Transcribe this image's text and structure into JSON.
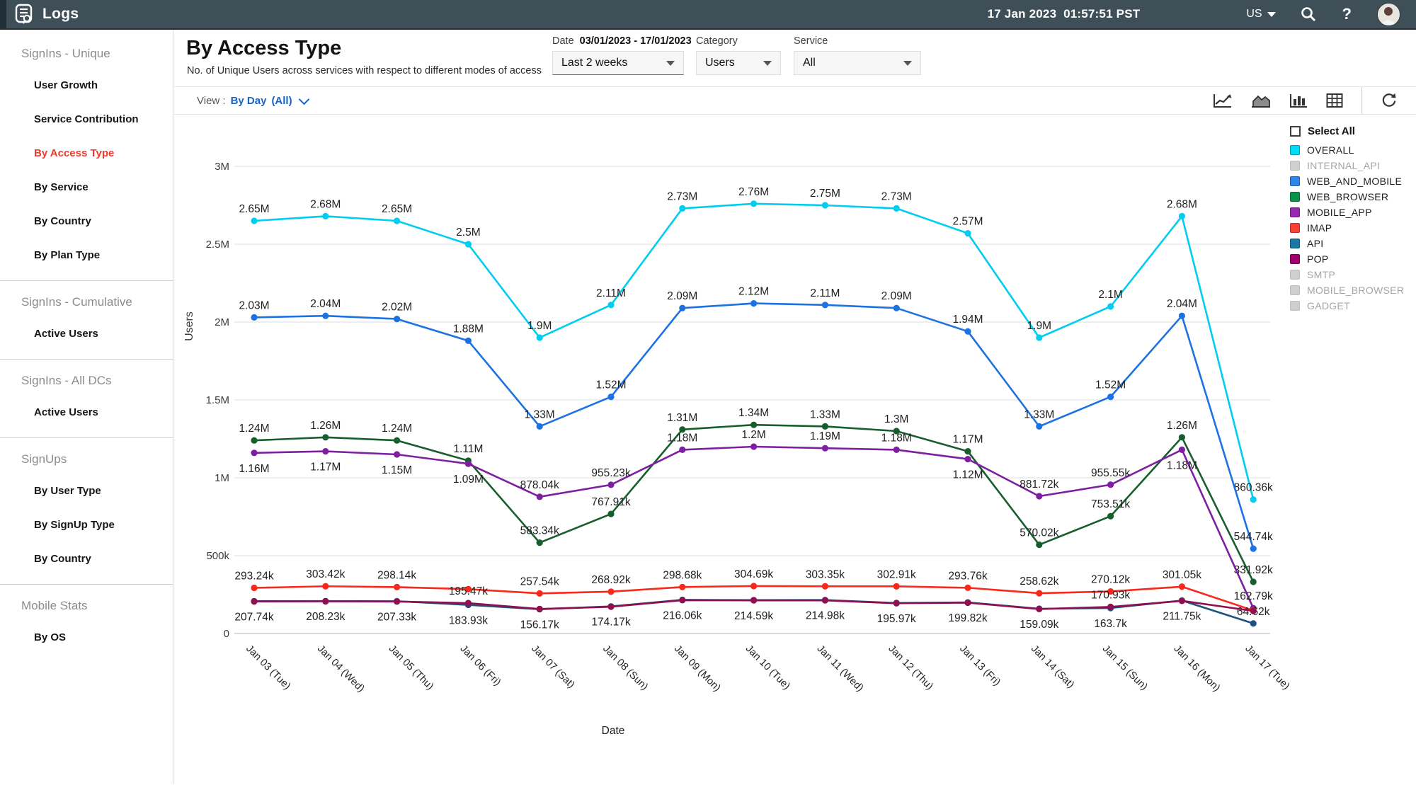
{
  "topbar": {
    "app_title": "Logs",
    "datetime": "17 Jan 2023  01:57:51 PST",
    "region": "US",
    "help_label": "?",
    "icons": [
      "logs-icon",
      "region-caret-icon",
      "search-icon",
      "help-icon",
      "avatar"
    ]
  },
  "sidebar": {
    "sections": [
      {
        "title": "SignIns - Unique",
        "items": [
          {
            "label": "User Growth"
          },
          {
            "label": "Service Contribution"
          },
          {
            "label": "By Access Type",
            "active": true
          },
          {
            "label": "By Service"
          },
          {
            "label": "By Country"
          },
          {
            "label": "By Plan Type"
          }
        ]
      },
      {
        "title": "SignIns - Cumulative",
        "items": [
          {
            "label": "Active Users"
          }
        ]
      },
      {
        "title": "SignIns - All DCs",
        "items": [
          {
            "label": "Active Users"
          }
        ]
      },
      {
        "title": "SignUps",
        "items": [
          {
            "label": "By User Type"
          },
          {
            "label": "By SignUp Type"
          },
          {
            "label": "By Country"
          }
        ]
      },
      {
        "title": "Mobile Stats",
        "items": [
          {
            "label": "By OS"
          }
        ]
      }
    ]
  },
  "header": {
    "title": "By Access Type",
    "subtitle": "No. of Unique Users across services with respect to different modes of access",
    "date_filter": {
      "label": "Date",
      "range": "03/01/2023 - 17/01/2023",
      "selected": "Last 2 weeks"
    },
    "category_filter": {
      "label": "Category",
      "selected": "Users"
    },
    "service_filter": {
      "label": "Service",
      "selected": "All"
    }
  },
  "toolbar": {
    "view_prefix": "View :",
    "view_value": "By Day",
    "view_scope": "(All)",
    "icons": [
      "line-chart-icon",
      "area-chart-icon",
      "bar-chart-icon",
      "table-view-icon",
      "refresh-icon"
    ]
  },
  "legend": {
    "select_all": "Select All"
  },
  "chart_data": {
    "type": "line",
    "x_title": "Date",
    "y_title": "Users",
    "ylim": [
      0,
      3000000
    ],
    "grid": true,
    "legend_position": "right",
    "yticks": [
      {
        "v": 0,
        "label": "0"
      },
      {
        "v": 500000,
        "label": "500k"
      },
      {
        "v": 1000000,
        "label": "1M"
      },
      {
        "v": 1500000,
        "label": "1.5M"
      },
      {
        "v": 2000000,
        "label": "2M"
      },
      {
        "v": 2500000,
        "label": "2.5M"
      },
      {
        "v": 3000000,
        "label": "3M"
      }
    ],
    "categories": [
      "Jan 03 (Tue)",
      "Jan 04 (Wed)",
      "Jan 05 (Thu)",
      "Jan 06 (Fri)",
      "Jan 07 (Sat)",
      "Jan 08 (Sun)",
      "Jan 09 (Mon)",
      "Jan 10 (Tue)",
      "Jan 11 (Wed)",
      "Jan 12 (Thu)",
      "Jan 13 (Fri)",
      "Jan 14 (Sat)",
      "Jan 15 (Sun)",
      "Jan 16 (Mon)",
      "Jan 17 (Tue)"
    ],
    "series": [
      {
        "name": "OVERALL",
        "enabled": true,
        "color": "#00dcf8",
        "line": "#00cdf0",
        "values": [
          2650000,
          2680000,
          2650000,
          2500000,
          1900000,
          2110000,
          2730000,
          2760000,
          2750000,
          2730000,
          2570000,
          1900000,
          2100000,
          2680000,
          860360
        ],
        "labels": [
          "2.65M",
          "2.68M",
          "2.65M",
          "2.5M",
          "1.9M",
          "2.11M",
          "2.73M",
          "2.76M",
          "2.75M",
          "2.73M",
          "2.57M",
          "1.9M",
          "2.1M",
          "2.68M",
          "860.36k"
        ]
      },
      {
        "name": "INTERNAL_API",
        "enabled": false,
        "color": "#cfcfcf",
        "values": null,
        "labels": null
      },
      {
        "name": "WEB_AND_MOBILE",
        "enabled": true,
        "color": "#2e86ea",
        "line": "#1c72e2",
        "values": [
          2030000,
          2040000,
          2020000,
          1880000,
          1330000,
          1520000,
          2090000,
          2120000,
          2110000,
          2090000,
          1940000,
          1330000,
          1520000,
          2040000,
          544740
        ],
        "labels": [
          "2.03M",
          "2.04M",
          "2.02M",
          "1.88M",
          "1.33M",
          "1.52M",
          "2.09M",
          "2.12M",
          "2.11M",
          "2.09M",
          "1.94M",
          "1.33M",
          "1.52M",
          "2.04M",
          "544.74k"
        ]
      },
      {
        "name": "WEB_BROWSER",
        "enabled": true,
        "color": "#0a9249",
        "line": "#175e2d",
        "values": [
          1240000,
          1260000,
          1240000,
          1110000,
          583340,
          767910,
          1310000,
          1340000,
          1330000,
          1300000,
          1170000,
          570020,
          753510,
          1260000,
          331920
        ],
        "labels": [
          "1.24M",
          "1.26M",
          "1.24M",
          "1.11M",
          "583.34k",
          "767.91k",
          "1.31M",
          "1.34M",
          "1.33M",
          "1.3M",
          "1.17M",
          "570.02k",
          "753.51k",
          "1.26M",
          "331.92k"
        ]
      },
      {
        "name": "MOBILE_APP",
        "enabled": true,
        "color": "#9a27b0",
        "line": "#7e1fa2",
        "flip_idx": [
          0,
          1,
          2,
          3,
          10,
          13
        ],
        "values": [
          1160000,
          1170000,
          1150000,
          1090000,
          878040,
          955230,
          1180000,
          1200000,
          1190000,
          1180000,
          1120000,
          881720,
          955550,
          1180000,
          162790
        ],
        "labels": [
          "1.16M",
          "1.17M",
          "1.15M",
          "1.09M",
          "878.04k",
          "955.23k",
          "1.18M",
          "1.2M",
          "1.19M",
          "1.18M",
          "1.12M",
          "881.72k",
          "955.55k",
          "1.18M",
          "162.79k"
        ]
      },
      {
        "name": "IMAP",
        "enabled": true,
        "color": "#fb4136",
        "line": "#f8291c",
        "values": [
          293240,
          303420,
          298140,
          285000,
          257540,
          268920,
          298680,
          304690,
          303350,
          302910,
          293760,
          258620,
          270120,
          301050,
          148000
        ],
        "labels": [
          "293.24k",
          "303.42k",
          "298.14k",
          null,
          "257.54k",
          "268.92k",
          "298.68k",
          "304.69k",
          "303.35k",
          "302.91k",
          "293.76k",
          "258.62k",
          "270.12k",
          "301.05k",
          null
        ]
      },
      {
        "name": "API",
        "enabled": true,
        "color": "#1878a8",
        "line": "#1d527e",
        "label_side": "below",
        "flip_idx": [
          14
        ],
        "values": [
          207740,
          208230,
          207330,
          183930,
          156170,
          174170,
          216060,
          214590,
          214980,
          195970,
          199820,
          159090,
          163700,
          211750,
          64620
        ],
        "labels": [
          "207.74k",
          "208.23k",
          "207.33k",
          "183.93k",
          "156.17k",
          "174.17k",
          "216.06k",
          "214.59k",
          "214.98k",
          "195.97k",
          "199.82k",
          "159.09k",
          "163.7k",
          "211.75k",
          "64.62k"
        ]
      },
      {
        "name": "POP",
        "enabled": true,
        "color": "#a0006b",
        "line": "#8e1050",
        "values": [
          205700,
          206200,
          205300,
          195470,
          157500,
          172000,
          214000,
          212900,
          213000,
          194200,
          197900,
          157200,
          170930,
          209800,
          145000
        ],
        "labels": [
          null,
          null,
          null,
          "195.47k",
          null,
          null,
          null,
          null,
          null,
          null,
          null,
          null,
          "170.93k",
          null,
          null
        ]
      },
      {
        "name": "SMTP",
        "enabled": false,
        "color": "#cfcfcf",
        "values": null,
        "labels": null
      },
      {
        "name": "MOBILE_BROWSER",
        "enabled": false,
        "color": "#cfcfcf",
        "values": null,
        "labels": null
      },
      {
        "name": "GADGET",
        "enabled": false,
        "color": "#cfcfcf",
        "values": null,
        "labels": null
      }
    ]
  }
}
